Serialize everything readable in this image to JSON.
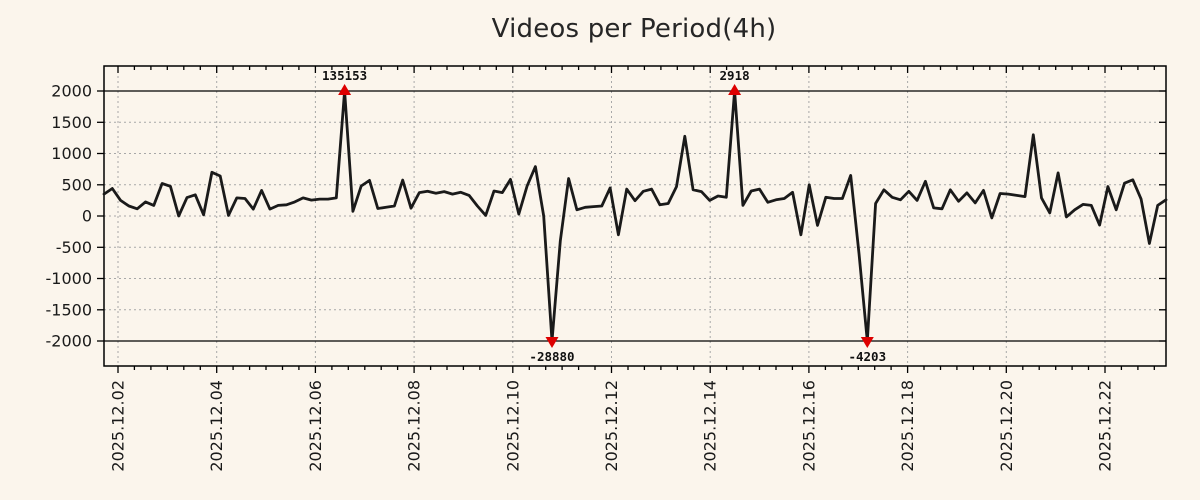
{
  "chart_data": {
    "type": "line",
    "title": "Videos per Period(4h)",
    "x_step_hours": 4,
    "x_tick_labels": [
      "2025.12.02",
      "2025.12.04",
      "2025.12.06",
      "2025.12.08",
      "2025.12.10",
      "2025.12.12",
      "2025.12.14",
      "2025.12.16",
      "2025.12.18",
      "2025.12.20",
      "2025.12.22"
    ],
    "y_ticks": [
      2000,
      1500,
      1000,
      500,
      0,
      -500,
      -1000,
      -1500,
      -2000
    ],
    "y_solid_lines": [
      2000,
      -2000
    ],
    "ylim": [
      -2400,
      2400
    ],
    "clip_value": 2000,
    "grid": true,
    "legend": "none",
    "series": [
      {
        "name": "videos-per-period",
        "values": [
          350,
          440,
          250,
          160,
          115,
          225,
          170,
          520,
          475,
          0,
          295,
          340,
          20,
          700,
          640,
          10,
          290,
          280,
          110,
          410,
          110,
          170,
          180,
          225,
          290,
          255,
          270,
          270,
          290,
          2000,
          75,
          480,
          570,
          120,
          140,
          160,
          575,
          125,
          375,
          395,
          365,
          390,
          350,
          380,
          330,
          160,
          10,
          400,
          375,
          585,
          30,
          480,
          790,
          0,
          -2000,
          -400,
          600,
          100,
          140,
          150,
          160,
          450,
          -300,
          430,
          245,
          395,
          430,
          180,
          200,
          470,
          1275,
          420,
          390,
          250,
          320,
          300,
          2000,
          170,
          400,
          430,
          220,
          260,
          280,
          380,
          -300,
          500,
          -150,
          300,
          280,
          280,
          650,
          -600,
          -2000,
          200,
          420,
          300,
          260,
          395,
          250,
          555,
          130,
          115,
          420,
          235,
          370,
          210,
          410,
          -30,
          360,
          350,
          330,
          310,
          1300,
          290,
          50,
          690,
          -15,
          100,
          185,
          170,
          -145,
          470,
          100,
          525,
          580,
          270,
          -440,
          170,
          260
        ]
      }
    ],
    "markers": [
      {
        "point_index": 29,
        "direction": "up",
        "label": "135153",
        "true_value": 135153
      },
      {
        "point_index": 54,
        "direction": "down",
        "label": "-28880",
        "true_value": -28880
      },
      {
        "point_index": 76,
        "direction": "up",
        "label": "2918",
        "true_value": 2918
      },
      {
        "point_index": 92,
        "direction": "down",
        "label": "-4203",
        "true_value": -4203
      }
    ],
    "colors": {
      "background": "#fbf5ec",
      "line": "#1a1a1a",
      "marker": "#dd0000",
      "grid": "#a8a8a8",
      "axis": "#000000",
      "text": "#1a1a1a"
    }
  }
}
